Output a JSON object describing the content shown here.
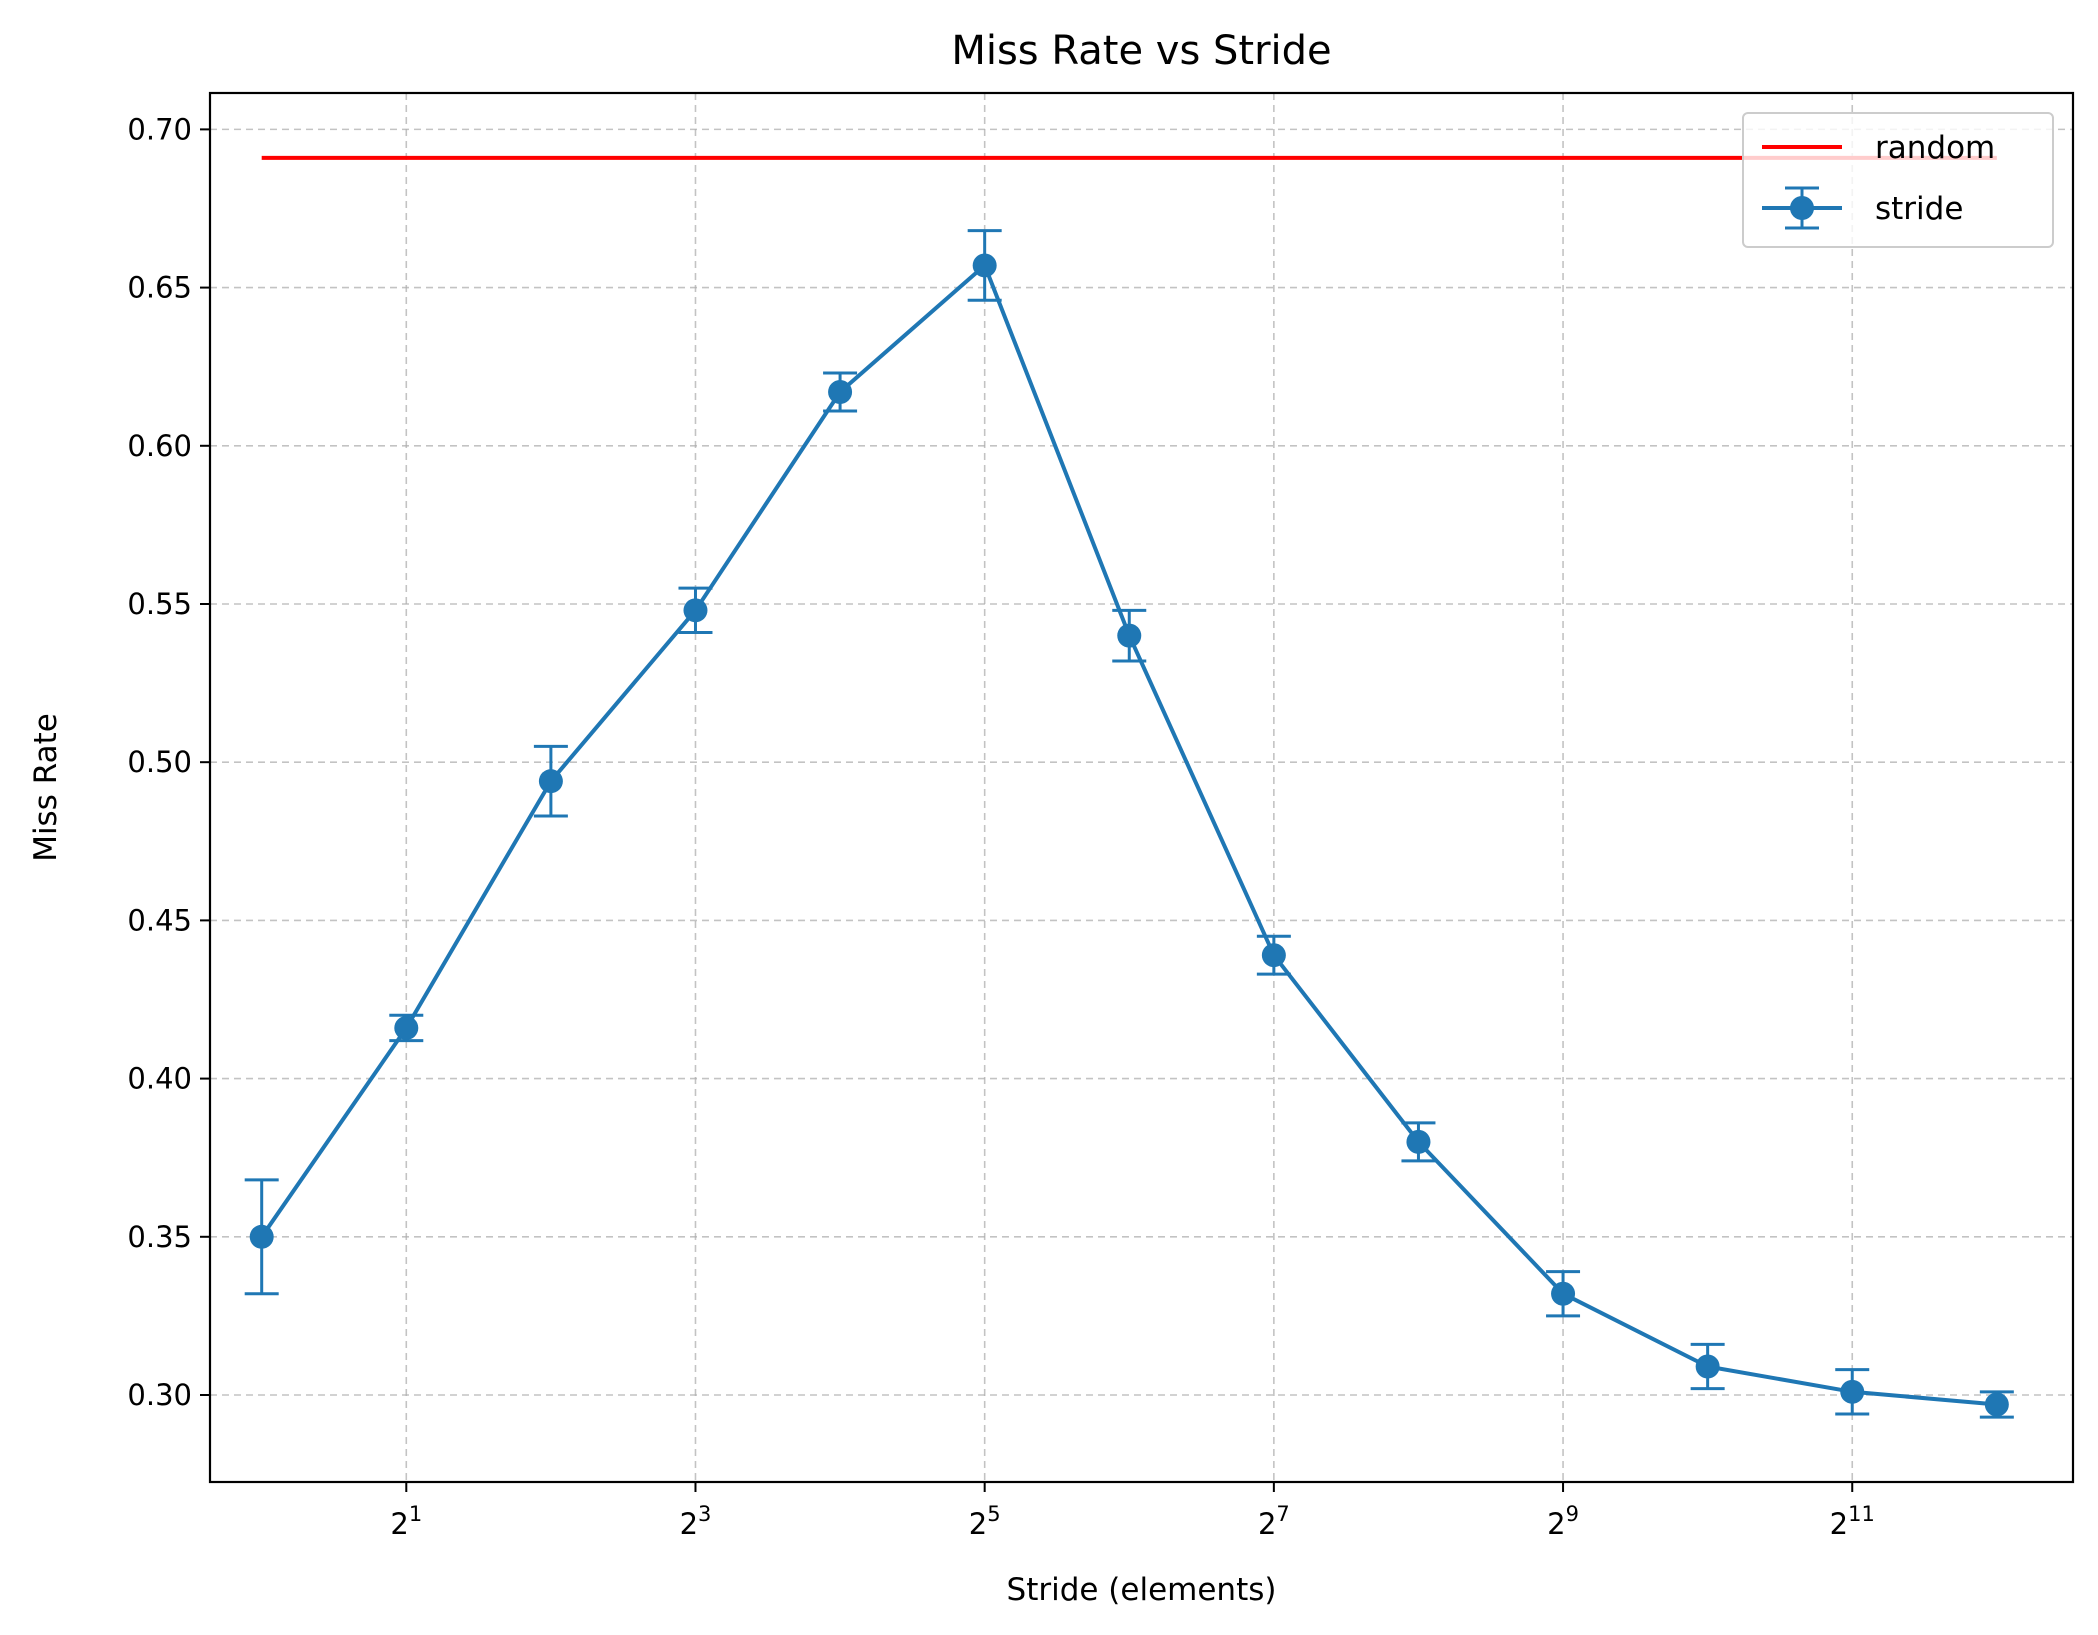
{
  "chart_data": {
    "type": "line",
    "title": "Miss Rate vs Stride",
    "xlabel": "Stride (elements)",
    "ylabel": "Miss Rate",
    "x_scale": "log2",
    "xlim": [
      0.7805,
      5901
    ],
    "ylim": [
      0.2725,
      0.7115
    ],
    "grid": true,
    "legend_position": "top-right",
    "x_ticks": [
      {
        "value": 2,
        "base": "2",
        "exp": "1"
      },
      {
        "value": 8,
        "base": "2",
        "exp": "3"
      },
      {
        "value": 32,
        "base": "2",
        "exp": "5"
      },
      {
        "value": 128,
        "base": "2",
        "exp": "7"
      },
      {
        "value": 512,
        "base": "2",
        "exp": "9"
      },
      {
        "value": 2048,
        "base": "2",
        "exp": "11"
      }
    ],
    "y_ticks": [
      {
        "value": 0.3,
        "label": "0.30"
      },
      {
        "value": 0.35,
        "label": "0.35"
      },
      {
        "value": 0.4,
        "label": "0.40"
      },
      {
        "value": 0.45,
        "label": "0.45"
      },
      {
        "value": 0.5,
        "label": "0.50"
      },
      {
        "value": 0.55,
        "label": "0.55"
      },
      {
        "value": 0.6,
        "label": "0.60"
      },
      {
        "value": 0.65,
        "label": "0.65"
      },
      {
        "value": 0.7,
        "label": "0.70"
      }
    ],
    "series": [
      {
        "name": "random",
        "kind": "line",
        "color": "#ff0000",
        "x": [
          1,
          4096
        ],
        "y": [
          0.691,
          0.691
        ]
      },
      {
        "name": "stride",
        "kind": "errorbar",
        "color": "#1f77b4",
        "x": [
          1,
          2,
          4,
          8,
          16,
          32,
          64,
          128,
          256,
          512,
          1024,
          2048,
          4096
        ],
        "y": [
          0.35,
          0.416,
          0.494,
          0.548,
          0.617,
          0.657,
          0.54,
          0.439,
          0.38,
          0.332,
          0.309,
          0.301,
          0.297
        ],
        "err": [
          0.018,
          0.004,
          0.011,
          0.007,
          0.006,
          0.011,
          0.008,
          0.006,
          0.006,
          0.007,
          0.007,
          0.007,
          0.004
        ]
      }
    ]
  }
}
